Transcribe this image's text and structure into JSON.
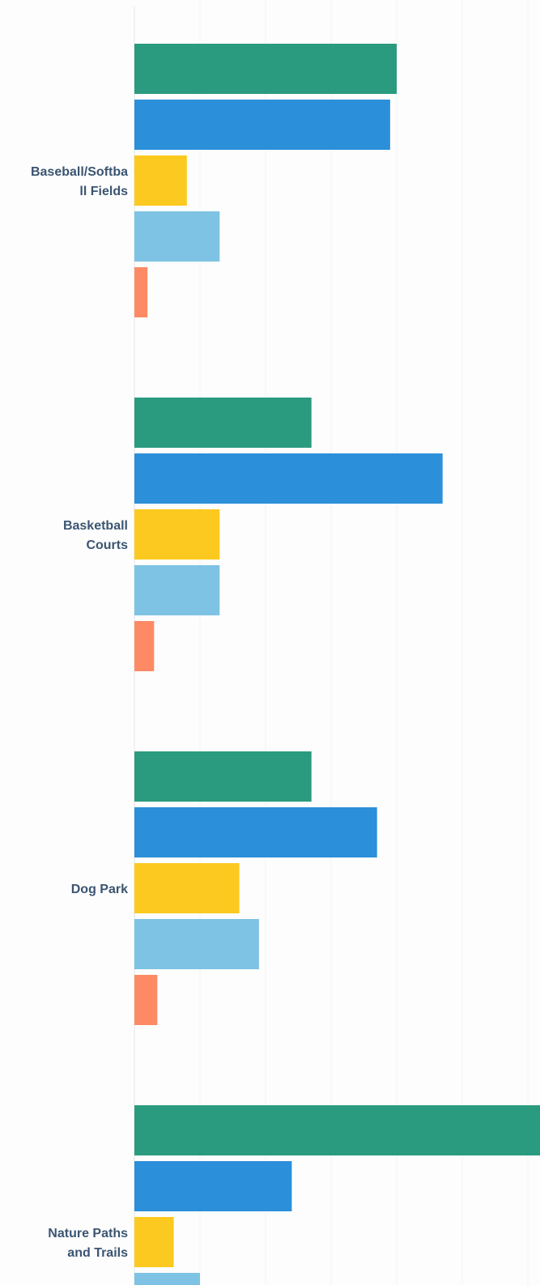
{
  "chart_data": {
    "type": "bar",
    "orientation": "horizontal",
    "categories": [
      "Baseball/Softball Fields",
      "Basketball Courts",
      "Dog Park",
      "Nature Paths and Trails"
    ],
    "category_label_lines": [
      [
        "Baseball/Softba",
        "ll Fields"
      ],
      [
        "Basketball",
        "Courts"
      ],
      [
        "Dog Park"
      ],
      [
        "Nature Paths",
        "and Trails"
      ]
    ],
    "series": [
      {
        "color": "#2a9b7e",
        "values": [
          40,
          27,
          27,
          62
        ]
      },
      {
        "color": "#2b8fd9",
        "values": [
          39,
          47,
          37,
          24
        ]
      },
      {
        "color": "#fcc920",
        "values": [
          8,
          13,
          16,
          6
        ]
      },
      {
        "color": "#7ec3e4",
        "values": [
          13,
          13,
          19,
          10
        ]
      },
      {
        "color": "#fd8a64",
        "values": [
          2,
          3,
          3.5,
          null
        ]
      }
    ],
    "title": "",
    "xlabel": "",
    "ylabel": "",
    "xlim": [
      0,
      61
    ],
    "grid": true,
    "legend": "none"
  }
}
